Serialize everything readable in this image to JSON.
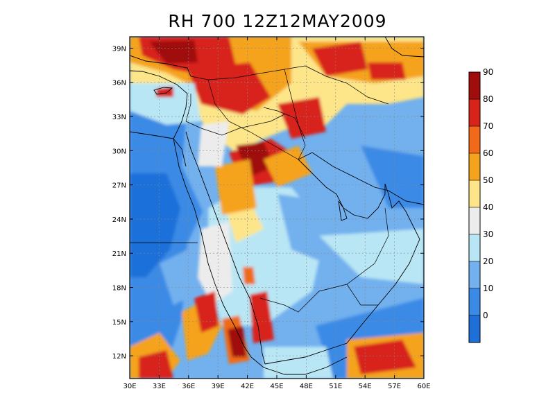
{
  "title": "RH 700 12Z12MAY2009",
  "map": {
    "lon_range": [
      30,
      60
    ],
    "lat_range": [
      10,
      40
    ],
    "x_ticks": [
      {
        "lon": 30,
        "label": "30E"
      },
      {
        "lon": 33,
        "label": "33E"
      },
      {
        "lon": 36,
        "label": "36E"
      },
      {
        "lon": 39,
        "label": "39E"
      },
      {
        "lon": 42,
        "label": "42E"
      },
      {
        "lon": 45,
        "label": "45E"
      },
      {
        "lon": 48,
        "label": "48E"
      },
      {
        "lon": 51,
        "label": "51E"
      },
      {
        "lon": 54,
        "label": "54E"
      },
      {
        "lon": 57,
        "label": "57E"
      },
      {
        "lon": 60,
        "label": "60E"
      }
    ],
    "y_ticks": [
      {
        "lat": 12,
        "label": "12N"
      },
      {
        "lat": 15,
        "label": "15N"
      },
      {
        "lat": 18,
        "label": "18N"
      },
      {
        "lat": 21,
        "label": "21N"
      },
      {
        "lat": 24,
        "label": "24N"
      },
      {
        "lat": 27,
        "label": "27N"
      },
      {
        "lat": 30,
        "label": "30N"
      },
      {
        "lat": 33,
        "label": "33N"
      },
      {
        "lat": 36,
        "label": "36N"
      },
      {
        "lat": 39,
        "label": "39N"
      }
    ],
    "grid": true
  },
  "colorbar": {
    "levels": [
      "0",
      "10",
      "20",
      "30",
      "40",
      "50",
      "60",
      "70",
      "80",
      "90"
    ],
    "colors": [
      "#1f6fd9",
      "#3a8ae6",
      "#72b0ee",
      "#b9e6f4",
      "#ececec",
      "#fde589",
      "#f5a31d",
      "#f06a19",
      "#d8231a",
      "#a00d0d"
    ]
  }
}
